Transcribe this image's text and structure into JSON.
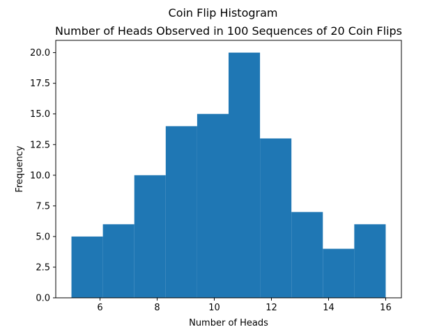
{
  "chart_data": {
    "type": "bar",
    "title": "Coin Flip Histogram",
    "subtitle": "Number of Heads Observed in 100 Sequences of 20 Coin Flips",
    "xlabel": "Number of Heads",
    "ylabel": "Frequency",
    "bin_edges": [
      5.0,
      6.1,
      7.2,
      8.3,
      9.4,
      10.5,
      11.6,
      12.7,
      13.8,
      14.9,
      16.0
    ],
    "values": [
      5,
      6,
      10,
      14,
      15,
      20,
      13,
      7,
      4,
      6
    ],
    "xlim": [
      4.45,
      16.55
    ],
    "ylim": [
      0,
      21
    ],
    "xticks": [
      6,
      8,
      10,
      12,
      14,
      16
    ],
    "yticks": [
      0.0,
      2.5,
      5.0,
      7.5,
      10.0,
      12.5,
      15.0,
      17.5,
      20.0
    ],
    "ytick_labels": [
      "0.0",
      "2.5",
      "5.0",
      "7.5",
      "10.0",
      "12.5",
      "15.0",
      "17.5",
      "20.0"
    ],
    "bar_color": "#1f77b4",
    "grid": false,
    "legend": "none"
  }
}
